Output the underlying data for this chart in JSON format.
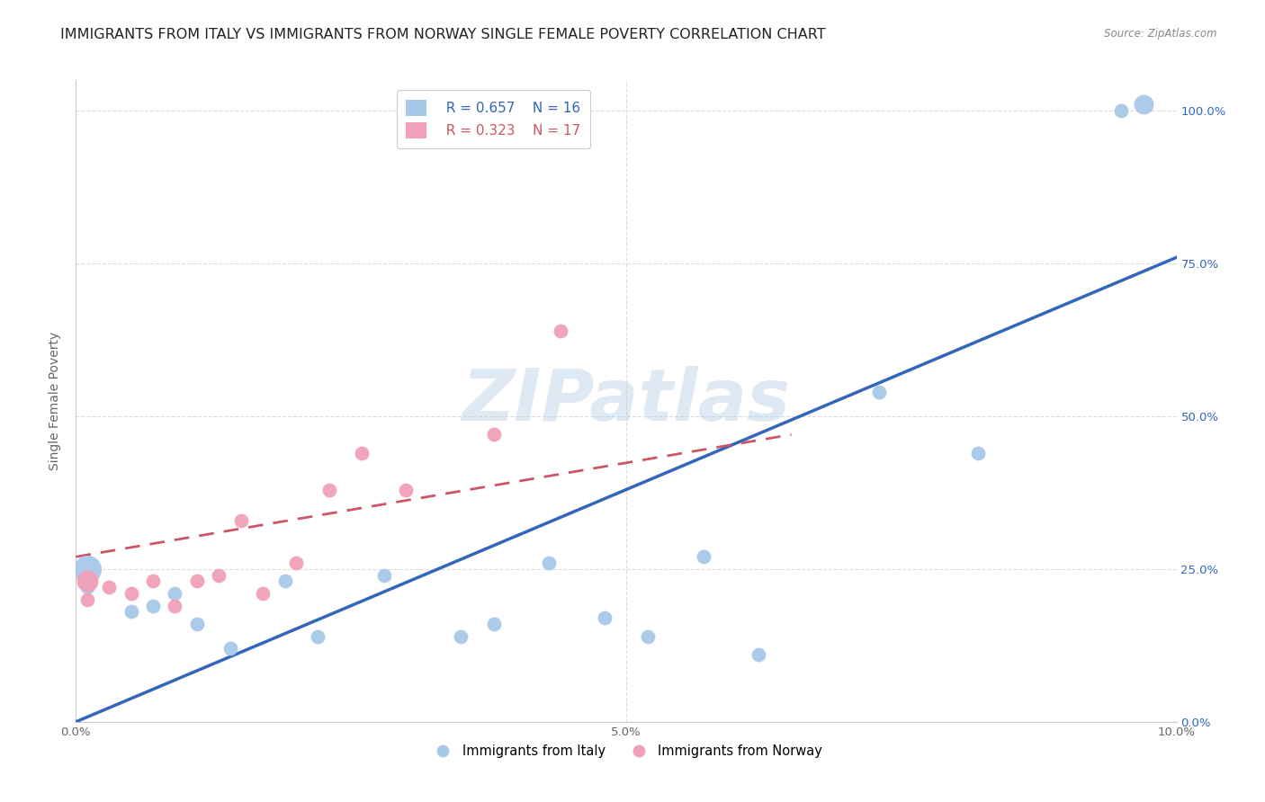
{
  "title": "IMMIGRANTS FROM ITALY VS IMMIGRANTS FROM NORWAY SINGLE FEMALE POVERTY CORRELATION CHART",
  "source": "Source: ZipAtlas.com",
  "ylabel": "Single Female Poverty",
  "xlim": [
    0.0,
    0.1
  ],
  "ylim": [
    0.0,
    1.05
  ],
  "xtick_vals": [
    0.0,
    0.01,
    0.02,
    0.03,
    0.04,
    0.05,
    0.06,
    0.07,
    0.08,
    0.09,
    0.1
  ],
  "xtick_labels": [
    "0.0%",
    "",
    "",
    "",
    "",
    "5.0%",
    "",
    "",
    "",
    "",
    "10.0%"
  ],
  "ytick_labels_right": [
    "0.0%",
    "25.0%",
    "50.0%",
    "75.0%",
    "100.0%"
  ],
  "ytick_vals_right": [
    0.0,
    0.25,
    0.5,
    0.75,
    1.0
  ],
  "italy_color": "#a8c8e8",
  "norway_color": "#f0a0b8",
  "italy_line_color": "#3366bb",
  "norway_line_color": "#cc5566",
  "italy_r": 0.657,
  "italy_n": 16,
  "norway_r": 0.323,
  "norway_n": 17,
  "watermark": "ZIPatlas",
  "italy_line_x": [
    0.0,
    0.1
  ],
  "italy_line_y": [
    0.0,
    0.76
  ],
  "norway_line_x": [
    0.0,
    0.065
  ],
  "norway_line_y": [
    0.27,
    0.47
  ],
  "italy_points_x": [
    0.001,
    0.005,
    0.007,
    0.009,
    0.011,
    0.014,
    0.019,
    0.022,
    0.028,
    0.035,
    0.038,
    0.043,
    0.048,
    0.052,
    0.057,
    0.062,
    0.073,
    0.082,
    0.095
  ],
  "italy_points_y": [
    0.22,
    0.18,
    0.19,
    0.21,
    0.16,
    0.12,
    0.23,
    0.14,
    0.24,
    0.14,
    0.16,
    0.26,
    0.17,
    0.14,
    0.27,
    0.11,
    0.54,
    0.44,
    1.0
  ],
  "italy_big_points": [
    [
      0.001,
      0.25
    ],
    [
      0.097,
      1.01
    ]
  ],
  "italy_big_sizes": [
    500,
    250
  ],
  "norway_points_x": [
    0.001,
    0.003,
    0.005,
    0.007,
    0.009,
    0.011,
    0.013,
    0.015,
    0.017,
    0.02,
    0.023,
    0.026,
    0.03,
    0.038,
    0.044
  ],
  "norway_points_y": [
    0.2,
    0.22,
    0.21,
    0.23,
    0.19,
    0.23,
    0.24,
    0.33,
    0.21,
    0.26,
    0.38,
    0.44,
    0.38,
    0.47,
    0.64
  ],
  "norway_big_points": [
    [
      0.001,
      0.23
    ]
  ],
  "norway_big_sizes": [
    300
  ],
  "grid_color": "#dddddd",
  "title_fontsize": 11.5,
  "axis_label_fontsize": 10,
  "tick_fontsize": 9.5
}
